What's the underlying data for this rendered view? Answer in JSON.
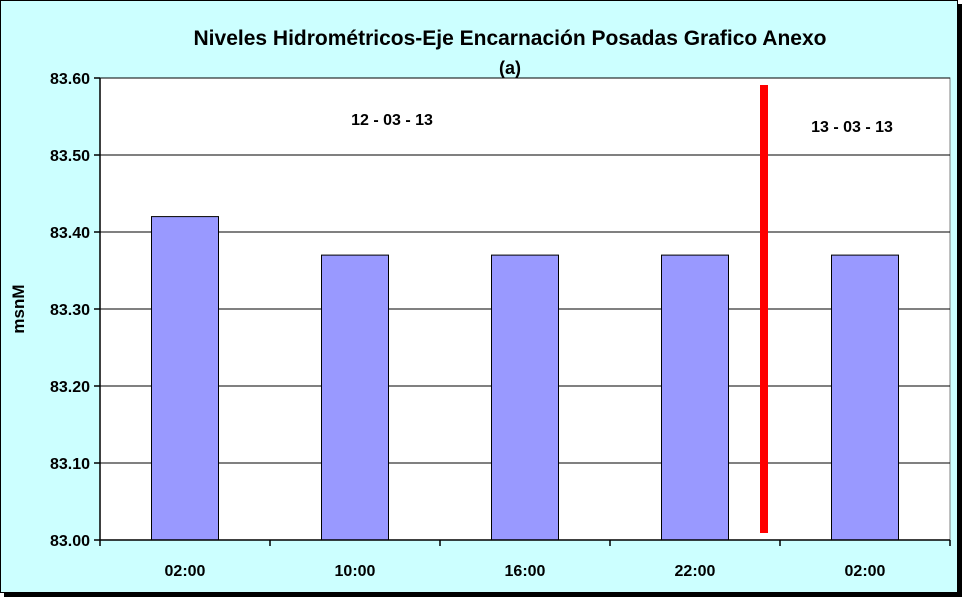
{
  "chart_data": {
    "type": "bar",
    "title": "Niveles Hidrométricos-Eje Encarnación Posadas Grafico Anexo",
    "subtitle": "(a)",
    "xlabel": "",
    "ylabel": "msnM",
    "categories": [
      "02:00",
      "10:00",
      "16:00",
      "22:00",
      "02:00"
    ],
    "values": [
      83.42,
      83.37,
      83.37,
      83.37,
      83.37
    ],
    "ylim": [
      83.0,
      83.6
    ],
    "yticks": [
      "83.00",
      "83.10",
      "83.20",
      "83.30",
      "83.40",
      "83.50",
      "83.60"
    ],
    "grid": true,
    "legend": "none",
    "bar_color": "#9999ff",
    "plot_background": "#ffffff",
    "chart_background": "#ccffff",
    "annotations": [
      {
        "text": "12 - 03 - 13"
      },
      {
        "text": "13 - 03 - 13"
      }
    ],
    "divider": {
      "after_category_index": 3,
      "color": "#ff0000"
    }
  }
}
